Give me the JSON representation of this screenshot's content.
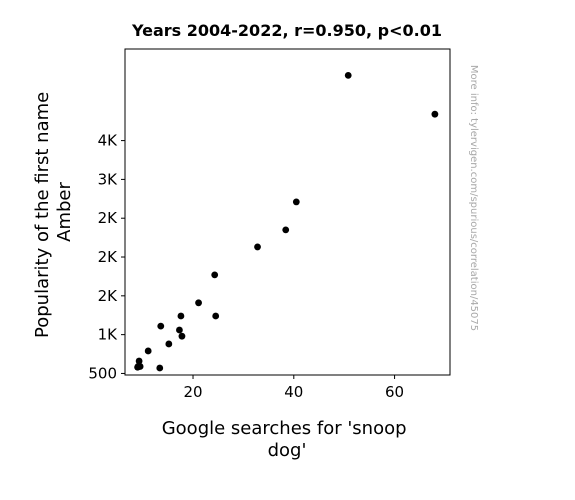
{
  "chart_data": {
    "type": "scatter",
    "title": "Years 2004-2022, r=0.950, p<0.01",
    "xlabel_lines": [
      "Google searches for 'snoop",
      "dog'"
    ],
    "ylabel_lines": [
      "Popularity of the first name",
      "Amber"
    ],
    "watermark": "More info: tylervigen.com/spurious/correlation/45075",
    "xlim": [
      6.5,
      71
    ],
    "ylim": [
      480,
      4680
    ],
    "x_ticks": [
      {
        "value": 20,
        "label": "20"
      },
      {
        "value": 40,
        "label": "40"
      },
      {
        "value": 60,
        "label": "60"
      }
    ],
    "y_ticks": [
      {
        "value": 500,
        "label": "500"
      },
      {
        "value": 1000,
        "label": "1K"
      },
      {
        "value": 1500,
        "label": "2K"
      },
      {
        "value": 2000,
        "label": "2K"
      },
      {
        "value": 2500,
        "label": "2K"
      },
      {
        "value": 3000,
        "label": "3K"
      },
      {
        "value": 3500,
        "label": "4K"
      }
    ],
    "marker_color": "#000000",
    "grid": false,
    "points": [
      {
        "x": 50.8,
        "y": 4340
      },
      {
        "x": 68.0,
        "y": 3840
      },
      {
        "x": 40.5,
        "y": 2710
      },
      {
        "x": 38.4,
        "y": 2350
      },
      {
        "x": 32.8,
        "y": 2130
      },
      {
        "x": 24.3,
        "y": 1770
      },
      {
        "x": 21.1,
        "y": 1410
      },
      {
        "x": 17.6,
        "y": 1240
      },
      {
        "x": 24.5,
        "y": 1240
      },
      {
        "x": 13.6,
        "y": 1110
      },
      {
        "x": 17.3,
        "y": 1060
      },
      {
        "x": 17.8,
        "y": 980
      },
      {
        "x": 15.2,
        "y": 880
      },
      {
        "x": 11.1,
        "y": 790
      },
      {
        "x": 9.3,
        "y": 660
      },
      {
        "x": 9.1,
        "y": 590
      },
      {
        "x": 9.5,
        "y": 590
      },
      {
        "x": 13.4,
        "y": 570
      },
      {
        "x": 9.0,
        "y": 580
      }
    ]
  }
}
